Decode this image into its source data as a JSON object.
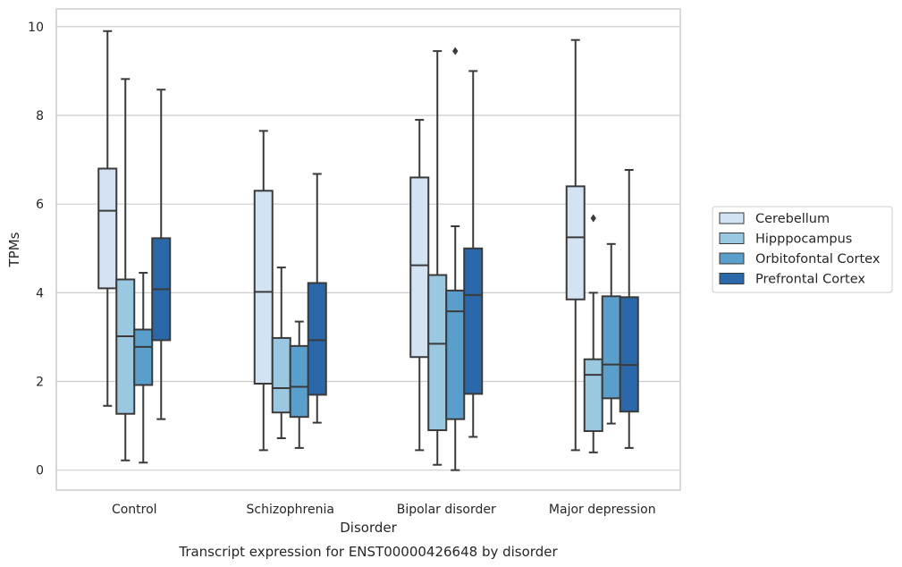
{
  "chart_data": {
    "type": "boxplot",
    "title": "",
    "caption": "Transcript expression for ENST00000426648 by disorder",
    "xlabel": "Disorder",
    "ylabel": "TPMs",
    "ylim": [
      -0.45,
      10.4
    ],
    "yticks": [
      0,
      2,
      4,
      6,
      8,
      10
    ],
    "grid": true,
    "legend_position": "right",
    "categories": [
      "Control",
      "Schizophrenia",
      "Bipolar disorder",
      "Major depression"
    ],
    "series": [
      {
        "name": "Cerebellum",
        "color": "#d3e3f3",
        "boxes": [
          {
            "whislo": 1.45,
            "q1": 4.1,
            "med": 5.85,
            "q3": 6.8,
            "whishi": 9.9,
            "fliers": []
          },
          {
            "whislo": 0.45,
            "q1": 1.95,
            "med": 4.02,
            "q3": 6.3,
            "whishi": 7.65,
            "fliers": []
          },
          {
            "whislo": 0.45,
            "q1": 2.55,
            "med": 4.62,
            "q3": 6.6,
            "whishi": 7.9,
            "fliers": []
          },
          {
            "whislo": 0.45,
            "q1": 3.85,
            "med": 5.25,
            "q3": 6.4,
            "whishi": 9.7,
            "fliers": []
          }
        ]
      },
      {
        "name": "Hipppocampus",
        "color": "#9ac8e0",
        "boxes": [
          {
            "whislo": 0.22,
            "q1": 1.27,
            "med": 3.02,
            "q3": 4.3,
            "whishi": 8.82,
            "fliers": []
          },
          {
            "whislo": 0.72,
            "q1": 1.3,
            "med": 1.85,
            "q3": 2.98,
            "whishi": 4.57,
            "fliers": []
          },
          {
            "whislo": 0.12,
            "q1": 0.9,
            "med": 2.85,
            "q3": 4.4,
            "whishi": 9.45,
            "fliers": []
          },
          {
            "whislo": 0.4,
            "q1": 0.88,
            "med": 2.15,
            "q3": 2.5,
            "whishi": 4.0,
            "fliers": [
              5.68
            ]
          }
        ]
      },
      {
        "name": "Orbitofontal Cortex",
        "color": "#5a9fcc",
        "boxes": [
          {
            "whislo": 0.17,
            "q1": 1.92,
            "med": 2.78,
            "q3": 3.17,
            "whishi": 4.45,
            "fliers": []
          },
          {
            "whislo": 0.5,
            "q1": 1.2,
            "med": 1.88,
            "q3": 2.8,
            "whishi": 3.35,
            "fliers": []
          },
          {
            "whislo": 0.0,
            "q1": 1.15,
            "med": 3.58,
            "q3": 4.05,
            "whishi": 5.5,
            "fliers": [
              9.45
            ]
          },
          {
            "whislo": 1.05,
            "q1": 1.62,
            "med": 2.38,
            "q3": 3.92,
            "whishi": 5.1,
            "fliers": []
          }
        ]
      },
      {
        "name": "Prefrontal Cortex",
        "color": "#2a68a9",
        "boxes": [
          {
            "whislo": 1.15,
            "q1": 2.93,
            "med": 4.08,
            "q3": 5.23,
            "whishi": 8.58,
            "fliers": []
          },
          {
            "whislo": 1.07,
            "q1": 1.7,
            "med": 2.93,
            "q3": 4.22,
            "whishi": 6.68,
            "fliers": []
          },
          {
            "whislo": 0.75,
            "q1": 1.72,
            "med": 3.95,
            "q3": 5.0,
            "whishi": 9.0,
            "fliers": []
          },
          {
            "whislo": 0.5,
            "q1": 1.32,
            "med": 2.37,
            "q3": 3.9,
            "whishi": 6.77,
            "fliers": []
          }
        ]
      }
    ]
  }
}
